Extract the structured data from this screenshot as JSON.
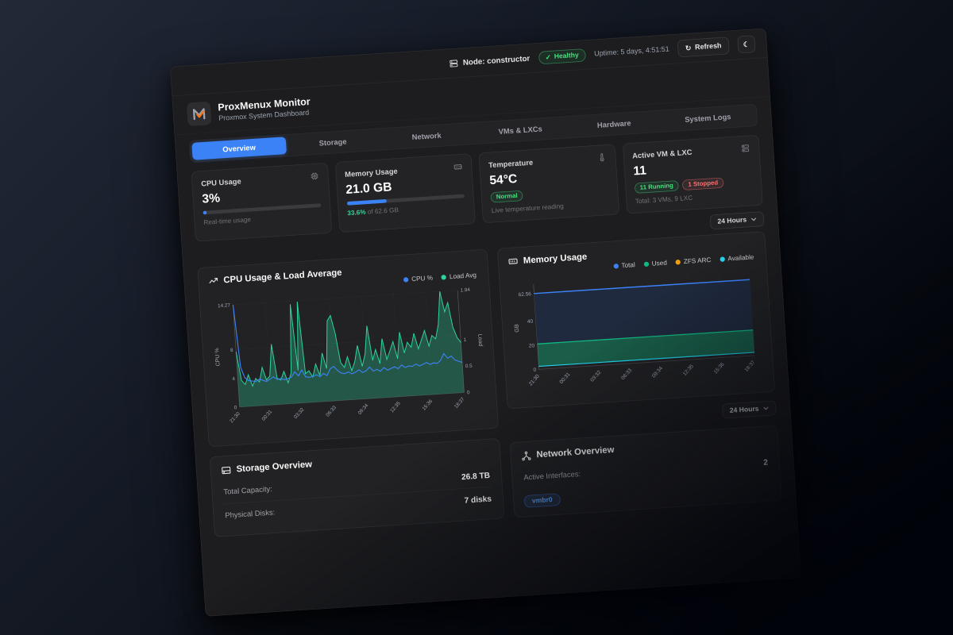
{
  "topbar": {
    "node_label": "Node: constructor",
    "health_badge": "Healthy",
    "uptime": "Uptime: 5 days, 4:51:51",
    "refresh_label": "Refresh"
  },
  "header": {
    "title": "ProxMenux Monitor",
    "subtitle": "Proxmox System Dashboard"
  },
  "tabs": [
    {
      "label": "Overview",
      "active": true
    },
    {
      "label": "Storage",
      "active": false
    },
    {
      "label": "Network",
      "active": false
    },
    {
      "label": "VMs & LXCs",
      "active": false
    },
    {
      "label": "Hardware",
      "active": false
    },
    {
      "label": "System Logs",
      "active": false
    }
  ],
  "stat_cards": {
    "cpu": {
      "label": "CPU Usage",
      "value": "3%",
      "progress_pct": 3,
      "caption": "Real-time usage"
    },
    "memory": {
      "label": "Memory Usage",
      "value": "21.0 GB",
      "progress_pct": 33.6,
      "caption_pct": "33.6%",
      "caption_rest": " of 62.6 GB"
    },
    "temperature": {
      "label": "Temperature",
      "value": "54°C",
      "badge": "Normal",
      "caption": "Live temperature reading"
    },
    "vms": {
      "label": "Active VM & LXC",
      "value": "11",
      "running_badge": "11 Running",
      "stopped_badge": "1 Stopped",
      "caption": "Total: 3 VMs, 9 LXC"
    }
  },
  "time_range": {
    "label": "24 Hours"
  },
  "chart_data": [
    {
      "type": "line",
      "title": "CPU Usage & Load Average",
      "legend": [
        {
          "name": "CPU %",
          "color": "#3b82f6"
        },
        {
          "name": "Load Avg",
          "color": "#2dd4a0"
        }
      ],
      "x_ticks": [
        "21:30",
        "00:31",
        "03:32",
        "06:33",
        "09:34",
        "12:35",
        "15:36",
        "18:37"
      ],
      "y_left": {
        "label": "CPU %",
        "ticks": [
          0,
          4,
          8,
          14.27
        ],
        "max": 14.27
      },
      "y_right": {
        "label": "Load",
        "ticks": [
          0,
          0.5,
          1,
          1.94
        ],
        "max": 1.94
      },
      "grid": true,
      "series": [
        {
          "name": "CPU %",
          "axis": "left",
          "color": "#3b82f6",
          "fill": false,
          "values": [
            14.27,
            5.5,
            4.0,
            3.6,
            3.5,
            3.4,
            3.7,
            3.5,
            3.3,
            3.6,
            3.9,
            3.5,
            3.6,
            3.4,
            3.5,
            3.7,
            4.4,
            3.8,
            4.6,
            3.6,
            3.5,
            3.6,
            3.8,
            3.5,
            3.9,
            3.6,
            4.5,
            4.8,
            4.2,
            3.8,
            3.7,
            3.9,
            3.6,
            3.8,
            4.1,
            3.7,
            3.9,
            4.4,
            3.8,
            4.0,
            3.7,
            4.2,
            3.8,
            4.0,
            4.2,
            3.9,
            4.4,
            4.0,
            4.2,
            4.1,
            4.4,
            4.1,
            4.3,
            4.5,
            4.2,
            4.4,
            4.3,
            4.7,
            5.6,
            4.9,
            5.2,
            4.6,
            4.4,
            4.2
          ]
        },
        {
          "name": "Load Avg",
          "axis": "right",
          "color": "#2dd4a0",
          "fill": true,
          "values": [
            1.05,
            0.5,
            0.42,
            0.6,
            0.38,
            0.52,
            0.45,
            0.72,
            0.48,
            0.55,
            1.15,
            0.5,
            0.46,
            0.62,
            0.4,
            0.58,
            1.88,
            0.62,
            1.92,
            0.55,
            0.6,
            0.48,
            0.72,
            0.5,
            0.92,
            0.62,
            1.52,
            1.62,
            1.28,
            0.72,
            0.62,
            0.82,
            0.55,
            0.72,
            1.02,
            0.62,
            0.85,
            1.38,
            0.72,
            0.92,
            0.65,
            1.12,
            0.72,
            0.88,
            1.05,
            0.72,
            1.22,
            0.82,
            1.02,
            0.92,
            1.18,
            0.88,
            1.05,
            1.22,
            0.92,
            1.12,
            1.05,
            1.32,
            1.94,
            1.55,
            1.72,
            1.25,
            1.05,
            0.95
          ]
        }
      ]
    },
    {
      "type": "area",
      "title": "Memory Usage",
      "legend": [
        {
          "name": "Total",
          "color": "#3b82f6"
        },
        {
          "name": "Used",
          "color": "#10b981"
        },
        {
          "name": "ZFS ARC",
          "color": "#f59e0b"
        },
        {
          "name": "Available",
          "color": "#22d3ee"
        }
      ],
      "x_ticks": [
        "21:30",
        "00:31",
        "03:32",
        "06:33",
        "09:34",
        "12:35",
        "15:36",
        "18:37"
      ],
      "y": {
        "label": "GB",
        "ticks": [
          0,
          20,
          40,
          62.56
        ],
        "max": 70
      },
      "grid": true,
      "series": [
        {
          "name": "Total",
          "color": "#3b82f6",
          "values": [
            62.56,
            62.56,
            62.56,
            62.56,
            62.56,
            62.56,
            62.56,
            62.56
          ]
        },
        {
          "name": "Used",
          "color": "#10b981",
          "values": [
            21,
            21,
            21,
            21,
            21,
            21,
            21,
            21
          ]
        },
        {
          "name": "ZFS ARC",
          "color": "#f59e0b",
          "values": [
            2.3,
            2.3,
            2.3,
            2.3,
            2.3,
            2.3,
            2.3,
            2.3
          ]
        },
        {
          "name": "Available",
          "color": "#22d3ee",
          "values": [
            2.5,
            2.5,
            2.5,
            2.5,
            2.5,
            2.5,
            2.5,
            2.5
          ]
        }
      ]
    }
  ],
  "storage_card": {
    "title": "Storage Overview",
    "rows": [
      {
        "label": "Total Capacity:",
        "value": "26.8 TB"
      },
      {
        "label": "Physical Disks:",
        "value": "7 disks"
      }
    ]
  },
  "network_card": {
    "title": "Network Overview",
    "rows": [
      {
        "label": "Active Interfaces:",
        "value": "2"
      }
    ],
    "interface_badge": "vmbr0"
  },
  "icons": {
    "refresh": "↻",
    "moon": "☾",
    "check": "✓"
  },
  "colors": {
    "accent_blue": "#3b82f6",
    "green": "#2dd4a0",
    "cyan": "#22d3ee",
    "orange": "#f59e0b",
    "red": "#f87171"
  }
}
